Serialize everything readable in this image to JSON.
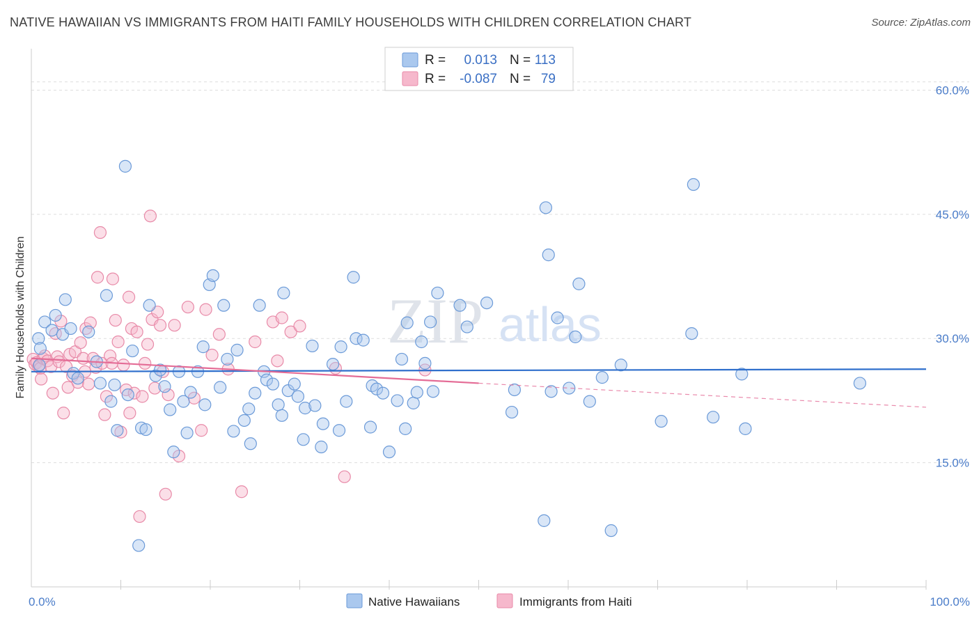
{
  "page": {
    "title": "NATIVE HAWAIIAN VS IMMIGRANTS FROM HAITI FAMILY HOUSEHOLDS WITH CHILDREN CORRELATION CHART",
    "source": "Source: ZipAtlas.com",
    "watermark_zip": "ZIP",
    "watermark_atlas": "atlas"
  },
  "colors": {
    "blue_fill": "#aac8ee",
    "blue_stroke": "#6b9ad8",
    "blue_line": "#2f6fcc",
    "pink_fill": "#f6b8cc",
    "pink_stroke": "#e88aa8",
    "pink_line": "#e46c96",
    "grid": "#dddddd",
    "tick_text": "#4a7cc9"
  },
  "legend_top": {
    "rows": [
      {
        "r_label": "R =",
        "r_value": "0.013",
        "n_label": "N =",
        "n_value": "113",
        "series": "blue"
      },
      {
        "r_label": "R =",
        "r_value": "-0.087",
        "n_label": "N =",
        "n_value": "79",
        "series": "pink"
      }
    ]
  },
  "legend_bottom": {
    "items": [
      {
        "label": "Native Hawaiians",
        "series": "blue"
      },
      {
        "label": "Immigrants from Haiti",
        "series": "pink"
      }
    ]
  },
  "chart_data": {
    "type": "scatter",
    "title": "NATIVE HAWAIIAN VS IMMIGRANTS FROM HAITI FAMILY HOUSEHOLDS WITH CHILDREN CORRELATION CHART",
    "xlabel": "",
    "ylabel": "Family Households with Children",
    "xlim": [
      0,
      100
    ],
    "ylim": [
      0,
      65
    ],
    "x_tick_labels": [
      "0.0%",
      "100.0%"
    ],
    "y_ticks": [
      15,
      30,
      45,
      60
    ],
    "y_tick_labels": [
      "15.0%",
      "30.0%",
      "45.0%",
      "60.0%"
    ],
    "grid": true,
    "legend_position": "top-center",
    "series": [
      {
        "name": "Native Hawaiians",
        "color": "blue",
        "R": 0.013,
        "N": 113,
        "trend": {
          "x": [
            0,
            100
          ],
          "y": [
            26.0,
            26.3
          ],
          "dashed_after": null
        },
        "points": [
          [
            0.8,
            30.0
          ],
          [
            0.9,
            26.8
          ],
          [
            1.0,
            28.8
          ],
          [
            1.5,
            32.0
          ],
          [
            2.3,
            31.0
          ],
          [
            2.7,
            32.8
          ],
          [
            3.5,
            30.5
          ],
          [
            3.8,
            34.7
          ],
          [
            4.4,
            31.2
          ],
          [
            4.7,
            25.8
          ],
          [
            5.2,
            25.2
          ],
          [
            6.4,
            30.8
          ],
          [
            7.3,
            27.2
          ],
          [
            7.7,
            24.6
          ],
          [
            8.4,
            35.2
          ],
          [
            8.9,
            22.4
          ],
          [
            9.3,
            24.4
          ],
          [
            9.6,
            18.9
          ],
          [
            10.5,
            50.8
          ],
          [
            10.8,
            23.2
          ],
          [
            11.3,
            28.5
          ],
          [
            12.0,
            5.0
          ],
          [
            12.3,
            19.2
          ],
          [
            12.8,
            19.0
          ],
          [
            13.2,
            34.0
          ],
          [
            13.9,
            25.5
          ],
          [
            14.4,
            26.2
          ],
          [
            14.9,
            24.2
          ],
          [
            15.5,
            21.4
          ],
          [
            15.9,
            16.3
          ],
          [
            16.5,
            26.0
          ],
          [
            17.0,
            22.4
          ],
          [
            17.4,
            18.6
          ],
          [
            17.8,
            23.5
          ],
          [
            18.6,
            26.0
          ],
          [
            19.2,
            29.0
          ],
          [
            19.4,
            22.0
          ],
          [
            19.9,
            36.5
          ],
          [
            20.3,
            37.6
          ],
          [
            21.1,
            24.1
          ],
          [
            21.5,
            34.0
          ],
          [
            21.9,
            27.5
          ],
          [
            22.6,
            18.8
          ],
          [
            23.0,
            28.6
          ],
          [
            23.8,
            20.1
          ],
          [
            24.3,
            21.5
          ],
          [
            24.5,
            17.3
          ],
          [
            25.0,
            23.4
          ],
          [
            25.5,
            34.0
          ],
          [
            26.0,
            26.0
          ],
          [
            26.3,
            25.0
          ],
          [
            27.0,
            24.5
          ],
          [
            27.6,
            22.0
          ],
          [
            28.0,
            20.7
          ],
          [
            28.2,
            35.5
          ],
          [
            28.7,
            23.7
          ],
          [
            29.4,
            24.5
          ],
          [
            29.8,
            23.0
          ],
          [
            30.4,
            17.8
          ],
          [
            30.6,
            21.6
          ],
          [
            31.4,
            29.1
          ],
          [
            31.7,
            21.9
          ],
          [
            32.4,
            16.9
          ],
          [
            32.6,
            19.7
          ],
          [
            33.7,
            26.9
          ],
          [
            34.4,
            18.9
          ],
          [
            34.6,
            29.0
          ],
          [
            35.2,
            22.4
          ],
          [
            36.0,
            37.4
          ],
          [
            36.3,
            30.0
          ],
          [
            37.1,
            29.8
          ],
          [
            37.9,
            19.3
          ],
          [
            38.1,
            24.3
          ],
          [
            38.6,
            23.9
          ],
          [
            39.3,
            23.4
          ],
          [
            40.0,
            16.3
          ],
          [
            40.9,
            22.5
          ],
          [
            41.4,
            27.5
          ],
          [
            41.8,
            19.1
          ],
          [
            42.0,
            31.9
          ],
          [
            42.7,
            22.2
          ],
          [
            43.1,
            23.5
          ],
          [
            43.6,
            29.6
          ],
          [
            44.0,
            27.0
          ],
          [
            44.6,
            32.0
          ],
          [
            44.9,
            23.6
          ],
          [
            45.4,
            35.5
          ],
          [
            47.9,
            34.0
          ],
          [
            48.7,
            31.4
          ],
          [
            50.9,
            34.3
          ],
          [
            53.7,
            21.1
          ],
          [
            54.0,
            23.8
          ],
          [
            57.3,
            8.0
          ],
          [
            57.5,
            45.8
          ],
          [
            57.8,
            40.1
          ],
          [
            58.1,
            23.6
          ],
          [
            58.8,
            32.5
          ],
          [
            60.1,
            24.0
          ],
          [
            60.8,
            30.2
          ],
          [
            61.2,
            36.6
          ],
          [
            62.4,
            22.4
          ],
          [
            63.8,
            25.3
          ],
          [
            65.9,
            26.8
          ],
          [
            70.4,
            20.0
          ],
          [
            73.8,
            30.6
          ],
          [
            74.0,
            48.6
          ],
          [
            76.2,
            20.5
          ],
          [
            79.4,
            25.7
          ],
          [
            79.8,
            19.1
          ],
          [
            92.6,
            24.6
          ],
          [
            64.8,
            6.8
          ]
        ]
      },
      {
        "name": "Immigrants from Haiti",
        "color": "pink",
        "R": -0.087,
        "N": 79,
        "trend": {
          "x": [
            0,
            50
          ],
          "y": [
            27.6,
            24.6
          ],
          "dashed_to": {
            "x": 100,
            "y": 21.7
          }
        },
        "points": [
          [
            0.2,
            27.5
          ],
          [
            0.4,
            26.9
          ],
          [
            0.6,
            27.1
          ],
          [
            0.8,
            26.6
          ],
          [
            1.0,
            26.4
          ],
          [
            1.1,
            25.1
          ],
          [
            1.3,
            27.6
          ],
          [
            1.5,
            27.9
          ],
          [
            1.8,
            27.3
          ],
          [
            2.2,
            26.6
          ],
          [
            2.4,
            23.4
          ],
          [
            2.7,
            30.6
          ],
          [
            2.9,
            27.8
          ],
          [
            3.1,
            27.2
          ],
          [
            3.3,
            32.1
          ],
          [
            3.6,
            21.0
          ],
          [
            3.9,
            26.6
          ],
          [
            4.1,
            24.1
          ],
          [
            4.3,
            28.1
          ],
          [
            4.6,
            25.5
          ],
          [
            4.9,
            28.4
          ],
          [
            5.2,
            24.7
          ],
          [
            5.5,
            29.5
          ],
          [
            5.8,
            27.6
          ],
          [
            6.1,
            31.2
          ],
          [
            6.4,
            24.5
          ],
          [
            6.6,
            31.9
          ],
          [
            6.9,
            27.6
          ],
          [
            7.2,
            26.5
          ],
          [
            7.4,
            37.4
          ],
          [
            7.7,
            42.8
          ],
          [
            7.9,
            27.0
          ],
          [
            8.2,
            20.8
          ],
          [
            8.4,
            23.0
          ],
          [
            8.8,
            27.9
          ],
          [
            9.1,
            37.2
          ],
          [
            9.4,
            32.2
          ],
          [
            9.7,
            29.6
          ],
          [
            10.0,
            18.7
          ],
          [
            10.3,
            26.8
          ],
          [
            10.6,
            23.8
          ],
          [
            10.9,
            35.0
          ],
          [
            11.2,
            31.2
          ],
          [
            11.5,
            23.4
          ],
          [
            11.8,
            30.8
          ],
          [
            12.1,
            8.5
          ],
          [
            12.4,
            23.0
          ],
          [
            12.7,
            27.0
          ],
          [
            13.0,
            29.3
          ],
          [
            13.3,
            44.8
          ],
          [
            13.5,
            32.3
          ],
          [
            13.8,
            24.0
          ],
          [
            14.1,
            33.2
          ],
          [
            14.4,
            31.6
          ],
          [
            14.7,
            26.0
          ],
          [
            15.0,
            11.2
          ],
          [
            15.3,
            23.2
          ],
          [
            16.0,
            31.6
          ],
          [
            16.5,
            15.8
          ],
          [
            17.5,
            33.8
          ],
          [
            18.2,
            22.8
          ],
          [
            19.0,
            18.9
          ],
          [
            19.5,
            33.5
          ],
          [
            20.2,
            28.0
          ],
          [
            21.0,
            30.5
          ],
          [
            22.0,
            26.3
          ],
          [
            23.5,
            11.5
          ],
          [
            25.0,
            29.6
          ],
          [
            27.0,
            32.0
          ],
          [
            27.5,
            27.3
          ],
          [
            28.0,
            32.5
          ],
          [
            29.0,
            30.8
          ],
          [
            30.0,
            31.5
          ],
          [
            34.0,
            26.4
          ],
          [
            35.0,
            13.3
          ],
          [
            44.0,
            26.2
          ],
          [
            11.0,
            21.0
          ],
          [
            9.0,
            27.0
          ],
          [
            6.0,
            26.0
          ]
        ]
      }
    ]
  }
}
